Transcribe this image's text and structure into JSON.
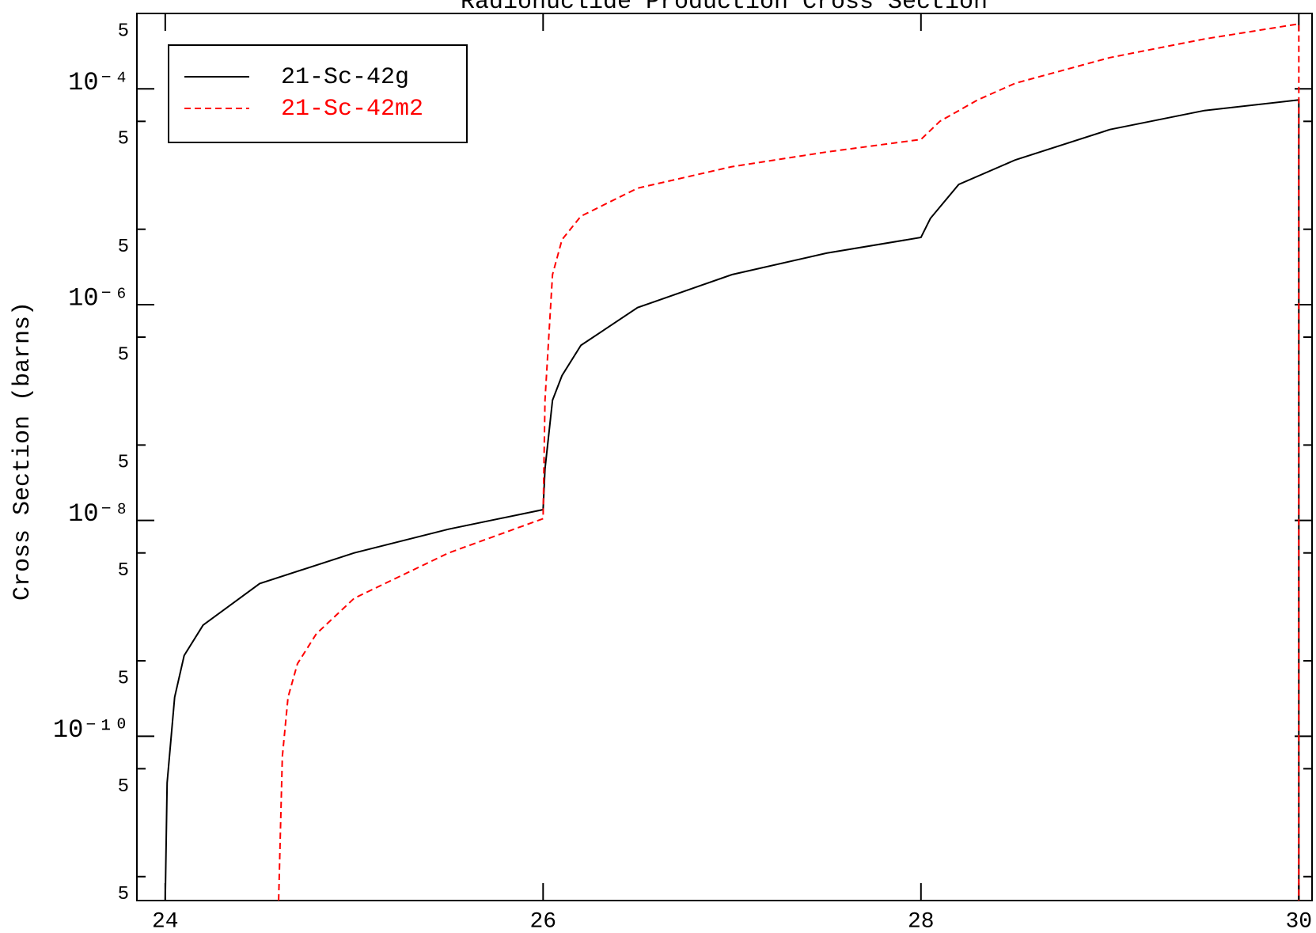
{
  "chart_data": {
    "type": "line",
    "title": "Radionuclide Production Cross Section",
    "ylabel": "Cross Section (barns)",
    "yscale": "log",
    "xlim": [
      23.85,
      30.07
    ],
    "ylim": [
      3e-12,
      0.0005
    ],
    "xticks": [
      24,
      26,
      28,
      30
    ],
    "yticks": [
      {
        "value": 0.0005,
        "label": "5"
      },
      {
        "value": 0.0001,
        "label": "10⁻⁴"
      },
      {
        "value": 5e-05,
        "label": "5"
      },
      {
        "value": 5e-06,
        "label": "5"
      },
      {
        "value": 1e-06,
        "label": "10⁻⁶"
      },
      {
        "value": 5e-07,
        "label": "5"
      },
      {
        "value": 5e-08,
        "label": "5"
      },
      {
        "value": 1e-08,
        "label": "10⁻⁸"
      },
      {
        "value": 5e-09,
        "label": "5"
      },
      {
        "value": 5e-10,
        "label": "5"
      },
      {
        "value": 1e-10,
        "label": "10⁻¹⁰"
      },
      {
        "value": 5e-11,
        "label": "5"
      },
      {
        "value": 5e-12,
        "label": "5"
      }
    ],
    "legend": "upper left",
    "series": [
      {
        "name": "21-Sc-42g",
        "color": "#000000",
        "line_style": "solid",
        "x": [
          24.0,
          24.01,
          24.05,
          24.1,
          24.2,
          24.5,
          25.0,
          25.5,
          26.0,
          26.01,
          26.05,
          26.1,
          26.2,
          26.5,
          27.0,
          27.5,
          28.0,
          28.05,
          28.2,
          28.5,
          29.0,
          29.5,
          30.0,
          30.0
        ],
        "values": [
          3e-12,
          3.7e-11,
          2.3e-10,
          5.6e-10,
          1.07e-09,
          2.6e-09,
          5e-09,
          8.3e-09,
          1.26e-08,
          3e-08,
          1.3e-07,
          2.2e-07,
          4.2e-07,
          9.4e-07,
          1.9e-06,
          3e-06,
          4.2e-06,
          6.3e-06,
          1.3e-05,
          2.2e-05,
          4.2e-05,
          6.3e-05,
          7.9e-05,
          3e-12
        ]
      },
      {
        "name": "21-Sc-42m2",
        "color": "#ff0000",
        "line_style": "dashed",
        "x": [
          24.6,
          24.62,
          24.65,
          24.7,
          24.8,
          25.0,
          25.5,
          26.0,
          26.01,
          26.05,
          26.1,
          26.2,
          26.5,
          27.0,
          27.5,
          28.0,
          28.1,
          28.3,
          28.5,
          29.0,
          29.5,
          30.0,
          30.0
        ],
        "values": [
          3e-12,
          6.5e-11,
          2.3e-10,
          4.7e-10,
          8.9e-10,
          1.9e-09,
          5e-09,
          1.04e-08,
          1.3e-07,
          1.9e-06,
          4e-06,
          6.6e-06,
          1.2e-05,
          1.9e-05,
          2.6e-05,
          3.4e-05,
          5e-05,
          7.9e-05,
          0.000113,
          0.000195,
          0.00029,
          0.0004,
          3e-12
        ]
      }
    ]
  }
}
